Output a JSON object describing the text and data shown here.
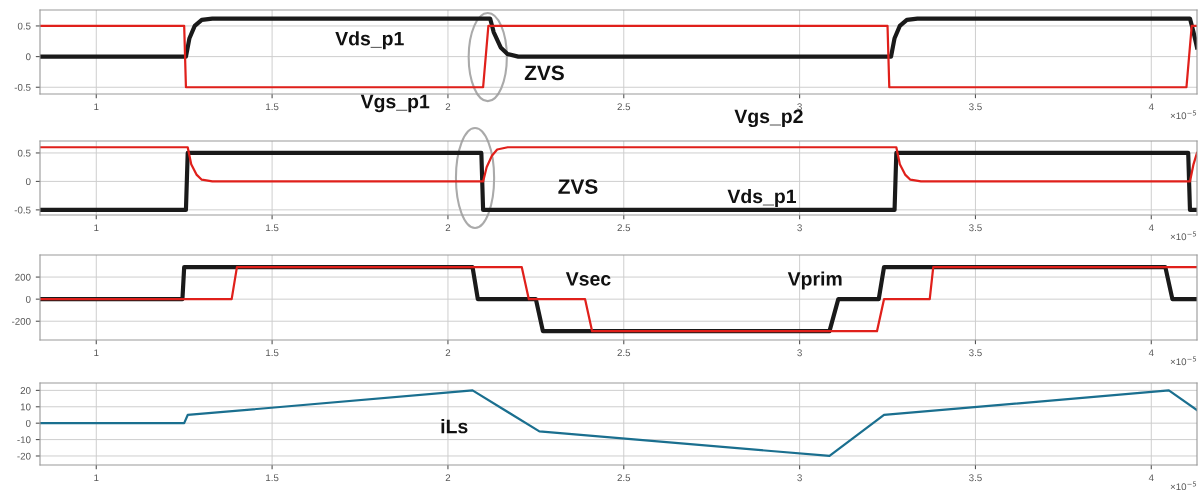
{
  "chart_data": [
    {
      "type": "line",
      "xlabel": "×10$^{−5}$",
      "xlim": [
        0.84,
        4.13
      ],
      "xticks": [
        1,
        1.5,
        2,
        2.5,
        3,
        3.5,
        4
      ],
      "ylim": [
        -0.61,
        0.76
      ],
      "yticks": [
        -0.5,
        0,
        0.5
      ],
      "grid": true,
      "legend": false,
      "annotations": [
        "ZVS"
      ],
      "series": [
        {
          "name": "Vds_p1",
          "color": "#1a1a1a",
          "x": [
            0.84,
            1.255,
            1.265,
            1.28,
            1.3,
            1.33,
            2.12,
            2.13,
            2.15,
            2.17,
            2.2,
            3.26,
            3.27,
            3.285,
            3.305,
            3.335,
            4.11,
            4.12,
            4.13
          ],
          "values": [
            0,
            0,
            0.3,
            0.5,
            0.6,
            0.62,
            0.62,
            0.4,
            0.15,
            0.04,
            0,
            0,
            0.3,
            0.5,
            0.6,
            0.62,
            0.62,
            0.4,
            0.15
          ]
        },
        {
          "name": "Vgs_p1",
          "color": "#e0201b",
          "x": [
            0.84,
            1.25,
            1.255,
            2.1,
            2.115,
            3.25,
            3.255,
            4.1,
            4.115,
            4.13
          ],
          "values": [
            0.5,
            0.5,
            -0.5,
            -0.5,
            0.5,
            0.5,
            -0.5,
            -0.5,
            0.5,
            0.5
          ]
        }
      ]
    },
    {
      "type": "line",
      "xlabel": "×10$^{−5}$",
      "xlim": [
        0.84,
        4.13
      ],
      "xticks": [
        1,
        1.5,
        2,
        2.5,
        3,
        3.5,
        4
      ],
      "ylim": [
        -0.59,
        0.71
      ],
      "yticks": [
        -0.5,
        0,
        0.5
      ],
      "grid": true,
      "legend": false,
      "annotations": [
        "ZVS"
      ],
      "series": [
        {
          "name": "Vds_p1",
          "color": "#1a1a1a",
          "x": [
            0.84,
            1.255,
            1.26,
            2.095,
            2.1,
            3.27,
            3.275,
            4.105,
            4.11,
            4.13
          ],
          "values": [
            -0.5,
            -0.5,
            0.5,
            0.5,
            -0.5,
            -0.5,
            0.5,
            0.5,
            -0.5,
            -0.5
          ]
        },
        {
          "name": "Vgs_p2",
          "color": "#e0201b",
          "x": [
            0.84,
            1.26,
            1.27,
            1.285,
            1.3,
            1.33,
            2.1,
            2.11,
            2.125,
            2.14,
            2.17,
            3.275,
            3.285,
            3.3,
            3.315,
            3.345,
            4.11,
            4.12,
            4.13
          ],
          "values": [
            0.6,
            0.6,
            0.3,
            0.12,
            0.03,
            0,
            0,
            0.25,
            0.45,
            0.56,
            0.6,
            0.6,
            0.3,
            0.12,
            0.03,
            0,
            0,
            0.3,
            0.5
          ]
        }
      ]
    },
    {
      "type": "line",
      "xlabel": "×10$^{−5}$",
      "xlim": [
        0.84,
        4.13
      ],
      "xticks": [
        1,
        1.5,
        2,
        2.5,
        3,
        3.5,
        4
      ],
      "ylim": [
        -370,
        400
      ],
      "yticks": [
        -200,
        0,
        200
      ],
      "grid": true,
      "legend": false,
      "series": [
        {
          "name": "Vprim",
          "color": "#1a1a1a",
          "x": [
            0.84,
            1.245,
            1.25,
            2.07,
            2.085,
            2.25,
            2.27,
            3.085,
            3.11,
            3.225,
            3.24,
            4.04,
            4.06,
            4.13
          ],
          "values": [
            0,
            0,
            290,
            290,
            0,
            0,
            -290,
            -290,
            0,
            0,
            290,
            290,
            0,
            0
          ]
        },
        {
          "name": "Vsec",
          "color": "#e0201b",
          "x": [
            0.84,
            1.385,
            1.4,
            2.21,
            2.23,
            2.39,
            2.41,
            3.22,
            3.24,
            3.37,
            3.38,
            4.13
          ],
          "values": [
            0,
            0,
            290,
            290,
            0,
            0,
            -290,
            -290,
            0,
            0,
            290,
            290
          ]
        }
      ]
    },
    {
      "type": "line",
      "xlabel": "×10$^{−5}$",
      "xlim": [
        0.84,
        4.13
      ],
      "xticks": [
        1,
        1.5,
        2,
        2.5,
        3,
        3.5,
        4
      ],
      "ylim": [
        -25.5,
        24.5
      ],
      "yticks": [
        -20,
        -10,
        0,
        10,
        20
      ],
      "grid": true,
      "legend": false,
      "series": [
        {
          "name": "iLs",
          "color": "#1a6f8f",
          "x": [
            0.84,
            1.25,
            1.26,
            2.07,
            2.26,
            3.085,
            3.24,
            4.05,
            4.13
          ],
          "values": [
            0,
            0,
            5,
            20,
            -5,
            -20,
            5,
            20,
            8
          ]
        }
      ]
    }
  ]
}
